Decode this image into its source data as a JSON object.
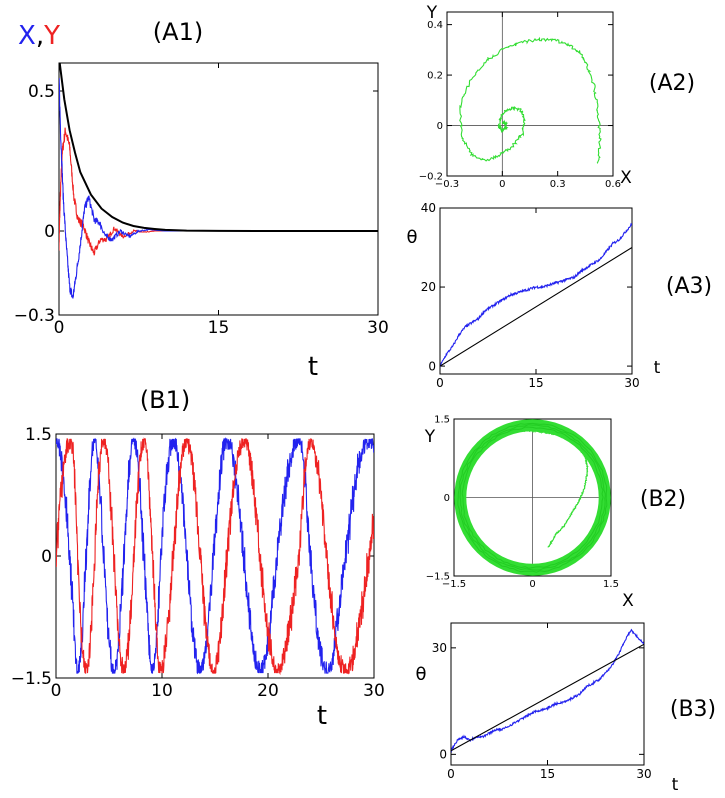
{
  "chart_data": [
    {
      "panel": "A1",
      "panel_label": "(A1)",
      "type": "line",
      "legend": [
        {
          "text": "X",
          "color": "#2222ee"
        },
        {
          "text": ",",
          "color": "#000000"
        },
        {
          "text": "Y",
          "color": "#ee2222"
        }
      ],
      "xlabel": "t",
      "ylabel": "",
      "xlim": [
        0,
        30
      ],
      "ylim": [
        -0.3,
        0.6
      ],
      "xticks": [
        {
          "v": 0,
          "label": "0"
        },
        {
          "v": 15,
          "label": "15"
        },
        {
          "v": 30,
          "label": "30"
        }
      ],
      "yticks": [
        {
          "v": -0.3,
          "label": "−0.3"
        },
        {
          "v": 0,
          "label": "0"
        },
        {
          "v": 0.5,
          "label": "0.5"
        }
      ],
      "series": [
        {
          "color": "#ee2222",
          "noise": 0.04,
          "x": [
            0,
            0.1,
            0.3,
            0.6,
            1.0,
            1.4,
            1.8,
            2.3,
            2.8,
            3.3,
            3.9,
            4.5,
            5.2,
            6.0,
            7.0,
            8.0,
            9.0,
            10.5,
            12,
            15,
            20,
            25,
            30
          ],
          "y": [
            -0.05,
            0.1,
            0.28,
            0.36,
            0.3,
            0.12,
            0.04,
            0.02,
            -0.04,
            -0.08,
            -0.03,
            -0.03,
            0.01,
            -0.02,
            0.0,
            -0.005,
            0.0,
            0.0,
            0.0,
            0.0,
            0.0,
            0.0,
            0.0
          ]
        },
        {
          "color": "#2222ee",
          "noise": 0.04,
          "x": [
            0,
            0.15,
            0.4,
            0.7,
            1.0,
            1.3,
            1.6,
            2.0,
            2.4,
            2.8,
            3.3,
            3.8,
            4.4,
            5.0,
            5.8,
            6.6,
            7.5,
            8.5,
            10,
            12,
            15,
            20,
            25,
            30
          ],
          "y": [
            0.55,
            0.35,
            0.12,
            -0.06,
            -0.2,
            -0.24,
            -0.16,
            -0.05,
            0.08,
            0.12,
            0.04,
            0.03,
            -0.02,
            -0.03,
            0.0,
            -0.02,
            0.0,
            0.005,
            0.0,
            0.0,
            0.0,
            0.0,
            0.0,
            0.0
          ]
        },
        {
          "color": "#000000",
          "noise": 0,
          "x": [
            0,
            0.5,
            1,
            1.5,
            2,
            3,
            4,
            5,
            6,
            7,
            8,
            9,
            10,
            12,
            15,
            20,
            25,
            30
          ],
          "y": [
            0.62,
            0.47,
            0.36,
            0.28,
            0.21,
            0.13,
            0.08,
            0.05,
            0.03,
            0.018,
            0.011,
            0.007,
            0.004,
            0.0015,
            0.0003,
            0,
            0,
            0
          ]
        }
      ]
    },
    {
      "panel": "A2",
      "panel_label": "(A2)",
      "type": "line",
      "xlabel": "X",
      "ylabel": "Y",
      "xlim": [
        -0.3,
        0.6
      ],
      "ylim": [
        -0.2,
        0.45
      ],
      "xticks": [
        {
          "v": -0.3,
          "label": "−0.3"
        },
        {
          "v": 0,
          "label": "0"
        },
        {
          "v": 0.3,
          "label": "0.3"
        },
        {
          "v": 0.6,
          "label": "0.6"
        }
      ],
      "yticks": [
        {
          "v": -0.2,
          "label": "−0.2"
        },
        {
          "v": 0,
          "label": "0"
        },
        {
          "v": 0.2,
          "label": "0.2"
        },
        {
          "v": 0.4,
          "label": "0.4"
        }
      ],
      "series": [
        {
          "color": "#33dd33",
          "noise": 0.012,
          "x": [
            0.52,
            0.53,
            0.52,
            0.5,
            0.46,
            0.42,
            0.36,
            0.28,
            0.2,
            0.1,
            0.0,
            -0.1,
            -0.18,
            -0.23,
            -0.22,
            -0.17,
            -0.1,
            -0.02,
            0.06,
            0.11,
            0.12,
            0.1,
            0.06,
            0.02,
            -0.01,
            -0.02,
            0.0,
            0.02,
            0.02,
            0.0
          ],
          "y": [
            -0.15,
            -0.05,
            0.05,
            0.15,
            0.24,
            0.29,
            0.32,
            0.34,
            0.34,
            0.33,
            0.3,
            0.25,
            0.17,
            0.07,
            -0.05,
            -0.11,
            -0.14,
            -0.12,
            -0.08,
            -0.03,
            0.02,
            0.06,
            0.07,
            0.06,
            0.03,
            0.0,
            -0.02,
            -0.01,
            0.01,
            0.01
          ]
        }
      ]
    },
    {
      "panel": "A3",
      "panel_label": "(A3)",
      "type": "line",
      "xlabel": "t",
      "ylabel": "θ",
      "xlim": [
        0,
        30
      ],
      "ylim": [
        -2,
        40
      ],
      "xticks": [
        {
          "v": 0,
          "label": "0"
        },
        {
          "v": 15,
          "label": "15"
        },
        {
          "v": 30,
          "label": "30"
        }
      ],
      "yticks": [
        {
          "v": 0,
          "label": "0"
        },
        {
          "v": 20,
          "label": "20"
        },
        {
          "v": 40,
          "label": "40"
        }
      ],
      "series": [
        {
          "color": "#2222ee",
          "noise": 0.6,
          "x": [
            0,
            1,
            2,
            3,
            4,
            5,
            6,
            7,
            8,
            9,
            10,
            11,
            12,
            13,
            14,
            15,
            16,
            17,
            18,
            19,
            20,
            21,
            22,
            23,
            24,
            25,
            26,
            27,
            28,
            29,
            30
          ],
          "y": [
            0,
            3,
            5,
            8,
            10,
            11,
            12,
            14,
            15,
            16,
            17,
            18,
            18.5,
            19,
            19.5,
            20,
            20,
            20.5,
            21,
            21.5,
            22,
            22.5,
            24,
            25,
            26,
            27,
            29,
            31,
            32,
            34,
            36
          ]
        },
        {
          "color": "#000000",
          "noise": 0,
          "x": [
            0,
            30
          ],
          "y": [
            0,
            30
          ]
        }
      ]
    },
    {
      "panel": "B1",
      "panel_label": "(B1)",
      "type": "line",
      "xlabel": "t",
      "ylabel": "",
      "xlim": [
        0,
        30
      ],
      "ylim": [
        -1.5,
        1.5
      ],
      "xticks": [
        {
          "v": 0,
          "label": "0"
        },
        {
          "v": 10,
          "label": "10"
        },
        {
          "v": 20,
          "label": "20"
        },
        {
          "v": 30,
          "label": "30"
        }
      ],
      "yticks": [
        {
          "v": -1.5,
          "label": "−1.5"
        },
        {
          "v": 0,
          "label": "0"
        },
        {
          "v": 1.5,
          "label": "1.5"
        }
      ],
      "series": [
        {
          "color": "#2222ee",
          "noise": 0,
          "phase_x": [
            0,
            0.5,
            1.0,
            1.6,
            2.2,
            3.0,
            4.0,
            5.5,
            7.0,
            8.5,
            10.0,
            12.0,
            14.0,
            16.0,
            18.5,
            21.0,
            23.0,
            24.0,
            25.0,
            26.5,
            28.5,
            30.0
          ],
          "phase_y": [
            0,
            0.6,
            1.2,
            2.0,
            3.5,
            5.0,
            7.0,
            9.5,
            12.0,
            14.5,
            17.5,
            20.0,
            22.5,
            25.0,
            27.5,
            30.0,
            31.5,
            33.0,
            34.0,
            35.5,
            37.0,
            38.0
          ],
          "fn": "cos",
          "amp": 1.42,
          "jitter": 0.1
        },
        {
          "color": "#ee2222",
          "noise": 0,
          "phase_x": [
            0,
            0.5,
            1.0,
            1.6,
            2.2,
            3.0,
            4.0,
            5.5,
            7.0,
            8.5,
            10.0,
            12.0,
            14.0,
            16.0,
            18.5,
            21.0,
            23.0,
            24.0,
            25.0,
            26.5,
            28.5,
            30.0
          ],
          "phase_y": [
            0,
            0.6,
            1.2,
            2.0,
            3.5,
            5.0,
            7.0,
            9.5,
            12.0,
            14.5,
            17.5,
            20.0,
            22.5,
            25.0,
            27.5,
            30.0,
            31.5,
            33.0,
            34.0,
            35.5,
            37.0,
            38.0
          ],
          "fn": "sin",
          "amp": 1.42,
          "jitter": 0.1
        }
      ]
    },
    {
      "panel": "B2",
      "panel_label": "(B2)",
      "type": "line",
      "xlabel": "X",
      "ylabel": "Y",
      "xlim": [
        -1.5,
        1.5
      ],
      "ylim": [
        -1.5,
        1.5
      ],
      "xticks": [
        {
          "v": -1.5,
          "label": "−1.5"
        },
        {
          "v": 0,
          "label": "0"
        },
        {
          "v": 1.5,
          "label": "1.5"
        }
      ],
      "yticks": [
        {
          "v": -1.5,
          "label": "−1.5"
        },
        {
          "v": 0,
          "label": "0"
        },
        {
          "v": 1.5,
          "label": "1.5"
        }
      ],
      "series": [
        {
          "color": "#33dd33",
          "noise": 0.02,
          "x": [
            0.3,
            0.45,
            0.6,
            0.75,
            0.9,
            1.0,
            1.05,
            1.02,
            0.9,
            0.7,
            0.45,
            0.2,
            0.0,
            -0.15,
            -0.2
          ],
          "y": [
            -0.95,
            -0.7,
            -0.55,
            -0.3,
            -0.05,
            0.2,
            0.5,
            0.75,
            0.95,
            1.1,
            1.2,
            1.25,
            1.27,
            1.28,
            1.3
          ]
        },
        {
          "color": "#33dd33",
          "noise": 0,
          "ring": true,
          "r": 1.38,
          "width": 12
        }
      ]
    },
    {
      "panel": "B3",
      "panel_label": "(B3)",
      "type": "line",
      "xlabel": "t",
      "ylabel": "θ",
      "xlim": [
        0,
        30
      ],
      "ylim": [
        -3,
        37
      ],
      "xticks": [
        {
          "v": 0,
          "label": "0"
        },
        {
          "v": 15,
          "label": "15"
        },
        {
          "v": 30,
          "label": "30"
        }
      ],
      "yticks": [
        {
          "v": 0,
          "label": "0"
        },
        {
          "v": 30,
          "label": "30"
        }
      ],
      "series": [
        {
          "color": "#2222ee",
          "noise": 0.6,
          "x": [
            0,
            1,
            2,
            3,
            4,
            5,
            6,
            7,
            8,
            9,
            10,
            11,
            12,
            13,
            14,
            15,
            16,
            17,
            18,
            19,
            20,
            21,
            22,
            23,
            24,
            25,
            26,
            27,
            28,
            29,
            30
          ],
          "y": [
            1,
            4,
            5,
            4,
            5,
            5,
            6,
            7,
            7,
            8,
            9,
            10,
            11,
            12,
            12.5,
            13,
            14,
            14.5,
            15,
            16,
            17,
            19,
            20,
            21,
            23,
            25,
            28,
            32,
            35,
            33,
            31
          ]
        },
        {
          "color": "#000000",
          "noise": 0,
          "x": [
            0,
            30
          ],
          "y": [
            1,
            31
          ]
        }
      ]
    }
  ]
}
